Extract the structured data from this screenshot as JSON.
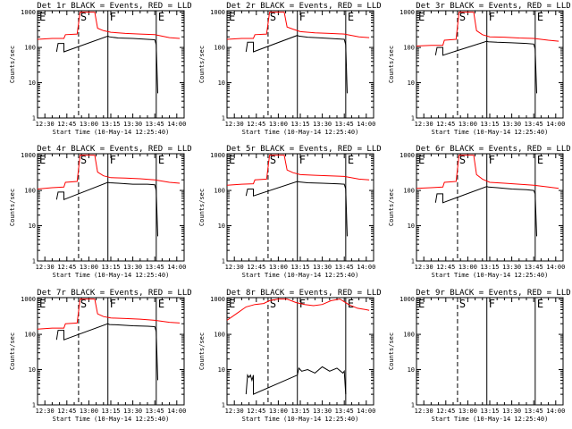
{
  "colors": {
    "events": "#000000",
    "lld": "#ff0000",
    "frame": "#000000",
    "background": "#ffffff"
  },
  "chart_data": [
    {
      "type": "line",
      "title": "Det 1r  BLACK = Events, RED = LLD",
      "xlabel": "Start Time (10-May-14 12:25:40)",
      "ylabel": "Counts/sec",
      "x_ticks": [
        "12:30",
        "12:45",
        "13:00",
        "13:15",
        "13:30",
        "13:45",
        "14:00"
      ],
      "y_ticks": [
        "1",
        "10",
        "100",
        "1000"
      ],
      "xlim": [
        "12:25",
        "14:05"
      ],
      "ylim": [
        1,
        1100
      ],
      "yscale": "log",
      "markers": [
        {
          "label": "E",
          "x": "12:25",
          "style": "dotted"
        },
        {
          "label": "S",
          "x": "12:53",
          "style": "dashed"
        },
        {
          "label": "F",
          "x": "13:13",
          "style": "solid"
        },
        {
          "label": "E",
          "x": "13:46",
          "style": "solid"
        }
      ],
      "series": [
        {
          "color": "red",
          "x": [
            "12:25",
            "12:35",
            "12:43",
            "12:44",
            "12:52",
            "12:54",
            "13:00",
            "13:04",
            "13:06",
            "13:10",
            "13:15",
            "13:25",
            "13:35",
            "13:45",
            "13:55",
            "14:02"
          ],
          "y": [
            170,
            180,
            180,
            230,
            240,
            1000,
            1000,
            1000,
            350,
            300,
            270,
            250,
            240,
            230,
            190,
            180
          ]
        },
        {
          "color": "black",
          "x": [
            "12:38",
            "12:39",
            "12:43",
            "12:43",
            "13:13",
            "13:14",
            "13:20",
            "13:30",
            "13:40",
            "13:45",
            "13:46",
            "13:47"
          ],
          "y": [
            75,
            130,
            130,
            75,
            210,
            200,
            185,
            180,
            170,
            165,
            120,
            5
          ]
        }
      ]
    },
    {
      "type": "line",
      "title": "Det 2r  BLACK = Events, RED = LLD",
      "xlabel": "Start Time (10-May-14 12:25:40)",
      "ylabel": "Counts/sec",
      "x_ticks": [
        "12:30",
        "12:45",
        "13:00",
        "13:15",
        "13:30",
        "13:45",
        "14:00"
      ],
      "y_ticks": [
        "1",
        "10",
        "100",
        "1000"
      ],
      "xlim": [
        "12:25",
        "14:05"
      ],
      "ylim": [
        1,
        1100
      ],
      "yscale": "log",
      "markers": [
        {
          "label": "E",
          "x": "12:25",
          "style": "dotted"
        },
        {
          "label": "S",
          "x": "12:53",
          "style": "dashed"
        },
        {
          "label": "F",
          "x": "13:13",
          "style": "solid"
        },
        {
          "label": "E",
          "x": "13:46",
          "style": "solid"
        }
      ],
      "series": [
        {
          "color": "red",
          "x": [
            "12:25",
            "12:35",
            "12:43",
            "12:44",
            "12:52",
            "12:54",
            "13:00",
            "13:04",
            "13:06",
            "13:10",
            "13:15",
            "13:25",
            "13:35",
            "13:45",
            "13:55",
            "14:02"
          ],
          "y": [
            170,
            180,
            180,
            230,
            240,
            1000,
            1000,
            1000,
            380,
            330,
            280,
            260,
            250,
            240,
            200,
            190
          ]
        },
        {
          "color": "black",
          "x": [
            "12:38",
            "12:39",
            "12:43",
            "12:43",
            "13:13",
            "13:14",
            "13:20",
            "13:30",
            "13:40",
            "13:45",
            "13:46",
            "13:47"
          ],
          "y": [
            75,
            140,
            140,
            75,
            220,
            210,
            195,
            185,
            175,
            170,
            120,
            5
          ]
        }
      ]
    },
    {
      "type": "line",
      "title": "Det 3r  BLACK = Events, RED = LLD",
      "xlabel": "Start Time (10-May-14 12:25:40)",
      "ylabel": "Counts/sec",
      "x_ticks": [
        "12:30",
        "12:45",
        "13:00",
        "13:15",
        "13:30",
        "13:45",
        "14:00"
      ],
      "y_ticks": [
        "1",
        "10",
        "100",
        "1000"
      ],
      "xlim": [
        "12:25",
        "14:05"
      ],
      "ylim": [
        1,
        1100
      ],
      "yscale": "log",
      "markers": [
        {
          "label": "E",
          "x": "12:25",
          "style": "dotted"
        },
        {
          "label": "S",
          "x": "12:53",
          "style": "dashed"
        },
        {
          "label": "F",
          "x": "13:13",
          "style": "solid"
        },
        {
          "label": "E",
          "x": "13:46",
          "style": "solid"
        }
      ],
      "series": [
        {
          "color": "red",
          "x": [
            "12:25",
            "12:35",
            "12:43",
            "12:44",
            "12:52",
            "12:54",
            "13:00",
            "13:04",
            "13:06",
            "13:10",
            "13:15",
            "13:25",
            "13:35",
            "13:45",
            "13:55",
            "14:02"
          ],
          "y": [
            110,
            115,
            115,
            160,
            170,
            1000,
            1000,
            1000,
            300,
            230,
            200,
            195,
            185,
            180,
            160,
            150
          ]
        },
        {
          "color": "black",
          "x": [
            "12:38",
            "12:39",
            "12:43",
            "12:43",
            "13:13",
            "13:14",
            "13:20",
            "13:30",
            "13:40",
            "13:45",
            "13:46",
            "13:47"
          ],
          "y": [
            60,
            100,
            100,
            60,
            150,
            145,
            140,
            135,
            130,
            125,
            90,
            5
          ]
        }
      ]
    },
    {
      "type": "line",
      "title": "Det 4r  BLACK = Events, RED = LLD",
      "xlabel": "Start Time (10-May-14 12:25:40)",
      "ylabel": "Counts/sec",
      "x_ticks": [
        "12:30",
        "12:45",
        "13:00",
        "13:15",
        "13:30",
        "13:45",
        "14:00"
      ],
      "y_ticks": [
        "1",
        "10",
        "100",
        "1000"
      ],
      "xlim": [
        "12:25",
        "14:05"
      ],
      "ylim": [
        1,
        1100
      ],
      "yscale": "log",
      "markers": [
        {
          "label": "E",
          "x": "12:25",
          "style": "dotted"
        },
        {
          "label": "S",
          "x": "12:53",
          "style": "dashed"
        },
        {
          "label": "F",
          "x": "13:13",
          "style": "solid"
        },
        {
          "label": "E",
          "x": "13:46",
          "style": "solid"
        }
      ],
      "series": [
        {
          "color": "red",
          "x": [
            "12:25",
            "12:35",
            "12:43",
            "12:44",
            "12:52",
            "12:54",
            "13:00",
            "13:04",
            "13:06",
            "13:10",
            "13:15",
            "13:25",
            "13:35",
            "13:45",
            "13:55",
            "14:02"
          ],
          "y": [
            110,
            120,
            125,
            170,
            180,
            1000,
            1000,
            1000,
            330,
            260,
            230,
            225,
            215,
            200,
            170,
            160
          ]
        },
        {
          "color": "black",
          "x": [
            "12:38",
            "12:39",
            "12:43",
            "12:43",
            "13:13",
            "13:14",
            "13:20",
            "13:30",
            "13:40",
            "13:45",
            "13:46",
            "13:47"
          ],
          "y": [
            55,
            90,
            90,
            55,
            170,
            165,
            160,
            150,
            150,
            145,
            100,
            5
          ]
        }
      ]
    },
    {
      "type": "line",
      "title": "Det 5r  BLACK = Events, RED = LLD",
      "xlabel": "Start Time (10-May-14 12:25:40)",
      "ylabel": "Counts/sec",
      "x_ticks": [
        "12:30",
        "12:45",
        "13:00",
        "13:15",
        "13:30",
        "13:45",
        "14:00"
      ],
      "y_ticks": [
        "1",
        "10",
        "100",
        "1000"
      ],
      "xlim": [
        "12:25",
        "14:05"
      ],
      "ylim": [
        1,
        1100
      ],
      "yscale": "log",
      "markers": [
        {
          "label": "E",
          "x": "12:25",
          "style": "dotted"
        },
        {
          "label": "S",
          "x": "12:53",
          "style": "dashed"
        },
        {
          "label": "F",
          "x": "13:13",
          "style": "solid"
        },
        {
          "label": "E",
          "x": "13:46",
          "style": "solid"
        }
      ],
      "series": [
        {
          "color": "red",
          "x": [
            "12:25",
            "12:35",
            "12:43",
            "12:44",
            "12:52",
            "12:54",
            "13:00",
            "13:04",
            "13:06",
            "13:10",
            "13:15",
            "13:25",
            "13:35",
            "13:45",
            "13:55",
            "14:02"
          ],
          "y": [
            140,
            150,
            155,
            200,
            210,
            1000,
            1000,
            1000,
            380,
            320,
            280,
            270,
            260,
            250,
            210,
            200
          ]
        },
        {
          "color": "black",
          "x": [
            "12:38",
            "12:39",
            "12:43",
            "12:43",
            "13:13",
            "13:14",
            "13:20",
            "13:30",
            "13:40",
            "13:45",
            "13:46",
            "13:47"
          ],
          "y": [
            70,
            110,
            110,
            70,
            180,
            175,
            165,
            160,
            155,
            150,
            110,
            5
          ]
        }
      ]
    },
    {
      "type": "line",
      "title": "Det 6r  BLACK = Events, RED = LLD",
      "xlabel": "Start Time (10-May-14 12:25:40)",
      "ylabel": "Counts/sec",
      "x_ticks": [
        "12:30",
        "12:45",
        "13:00",
        "13:15",
        "13:30",
        "13:45",
        "14:00"
      ],
      "y_ticks": [
        "1",
        "10",
        "100",
        "1000"
      ],
      "xlim": [
        "12:25",
        "14:05"
      ],
      "ylim": [
        1,
        1100
      ],
      "yscale": "log",
      "markers": [
        {
          "label": "E",
          "x": "12:25",
          "style": "dotted"
        },
        {
          "label": "S",
          "x": "12:53",
          "style": "dashed"
        },
        {
          "label": "F",
          "x": "13:13",
          "style": "solid"
        },
        {
          "label": "E",
          "x": "13:46",
          "style": "solid"
        }
      ],
      "series": [
        {
          "color": "red",
          "x": [
            "12:25",
            "12:35",
            "12:43",
            "12:44",
            "12:52",
            "12:54",
            "13:00",
            "13:04",
            "13:06",
            "13:10",
            "13:15",
            "13:25",
            "13:35",
            "13:45",
            "13:55",
            "14:02"
          ],
          "y": [
            115,
            120,
            125,
            170,
            180,
            1000,
            1000,
            1000,
            280,
            210,
            170,
            160,
            150,
            140,
            125,
            115
          ]
        },
        {
          "color": "black",
          "x": [
            "12:38",
            "12:39",
            "12:43",
            "12:43",
            "13:13",
            "13:14",
            "13:20",
            "13:30",
            "13:40",
            "13:45",
            "13:46",
            "13:47"
          ],
          "y": [
            45,
            80,
            80,
            45,
            130,
            125,
            120,
            110,
            105,
            100,
            80,
            5
          ]
        }
      ]
    },
    {
      "type": "line",
      "title": "Det 7r  BLACK = Events, RED = LLD",
      "xlabel": "Start Time (10-May-14 12:25:40)",
      "ylabel": "Counts/sec",
      "x_ticks": [
        "12:30",
        "12:45",
        "13:00",
        "13:15",
        "13:30",
        "13:45",
        "14:00"
      ],
      "y_ticks": [
        "1",
        "10",
        "100",
        "1000"
      ],
      "xlim": [
        "12:25",
        "14:05"
      ],
      "ylim": [
        1,
        1100
      ],
      "yscale": "log",
      "markers": [
        {
          "label": "E",
          "x": "12:25",
          "style": "dotted"
        },
        {
          "label": "S",
          "x": "12:53",
          "style": "dashed"
        },
        {
          "label": "F",
          "x": "13:13",
          "style": "solid"
        },
        {
          "label": "E",
          "x": "13:46",
          "style": "solid"
        }
      ],
      "series": [
        {
          "color": "red",
          "x": [
            "12:25",
            "12:35",
            "12:43",
            "12:44",
            "12:52",
            "12:54",
            "13:00",
            "13:04",
            "13:06",
            "13:10",
            "13:15",
            "13:25",
            "13:35",
            "13:45",
            "13:55",
            "14:02"
          ],
          "y": [
            140,
            150,
            150,
            200,
            210,
            1000,
            1000,
            1000,
            380,
            320,
            290,
            280,
            270,
            250,
            220,
            210
          ]
        },
        {
          "color": "black",
          "x": [
            "12:38",
            "12:39",
            "12:43",
            "12:43",
            "13:13",
            "13:14",
            "13:20",
            "13:30",
            "13:40",
            "13:45",
            "13:46",
            "13:47"
          ],
          "y": [
            70,
            130,
            130,
            70,
            200,
            190,
            185,
            175,
            170,
            165,
            120,
            5
          ]
        }
      ]
    },
    {
      "type": "line",
      "title": "Det 8r  BLACK = Events, RED = LLD",
      "xlabel": "Start Time (10-May-14 12:25:40)",
      "ylabel": "Counts/sec",
      "x_ticks": [
        "12:30",
        "12:45",
        "13:00",
        "13:15",
        "13:30",
        "13:45",
        "14:00"
      ],
      "y_ticks": [
        "1",
        "10",
        "100",
        "1000"
      ],
      "xlim": [
        "12:25",
        "14:05"
      ],
      "ylim": [
        1,
        1100
      ],
      "yscale": "log",
      "markers": [
        {
          "label": "E",
          "x": "12:25",
          "style": "dotted"
        },
        {
          "label": "S",
          "x": "12:53",
          "style": "dashed"
        },
        {
          "label": "F",
          "x": "13:13",
          "style": "solid"
        },
        {
          "label": "E",
          "x": "13:46",
          "style": "solid"
        }
      ],
      "series": [
        {
          "color": "red",
          "x": [
            "12:25",
            "12:32",
            "12:38",
            "12:44",
            "12:50",
            "12:54",
            "13:00",
            "13:06",
            "13:12",
            "13:18",
            "13:24",
            "13:30",
            "13:36",
            "13:42",
            "13:48",
            "13:54",
            "14:00",
            "14:02"
          ],
          "y": [
            250,
            400,
            600,
            700,
            750,
            900,
            1000,
            1000,
            800,
            700,
            650,
            700,
            900,
            1000,
            700,
            550,
            500,
            480
          ]
        },
        {
          "color": "black",
          "x": [
            "12:38",
            "12:39",
            "12:40",
            "12:41",
            "12:42",
            "12:43",
            "12:43",
            "13:13",
            "13:14",
            "13:16",
            "13:20",
            "13:25",
            "13:30",
            "13:35",
            "13:40",
            "13:44",
            "13:45",
            "13:46"
          ],
          "y": [
            2,
            7,
            6,
            7,
            5,
            7,
            2,
            7,
            11,
            9,
            10,
            8,
            12,
            9,
            11,
            8,
            9,
            2
          ]
        }
      ]
    },
    {
      "type": "line",
      "title": "Det 9r  BLACK = Events, RED = LLD",
      "xlabel": "Start Time (10-May-14 12:25:40)",
      "ylabel": "Counts/sec",
      "x_ticks": [
        "12:30",
        "12:45",
        "13:00",
        "13:15",
        "13:30",
        "13:45",
        "14:00"
      ],
      "y_ticks": [
        "1",
        "10",
        "100",
        "1000"
      ],
      "xlim": [
        "12:25",
        "14:05"
      ],
      "ylim": [
        1,
        1100
      ],
      "yscale": "log",
      "markers": [
        {
          "label": "E",
          "x": "12:25",
          "style": "dotted"
        },
        {
          "label": "S",
          "x": "12:53",
          "style": "dashed"
        },
        {
          "label": "F",
          "x": "13:13",
          "style": "solid"
        },
        {
          "label": "E",
          "x": "13:46",
          "style": "solid"
        }
      ],
      "series": []
    }
  ]
}
